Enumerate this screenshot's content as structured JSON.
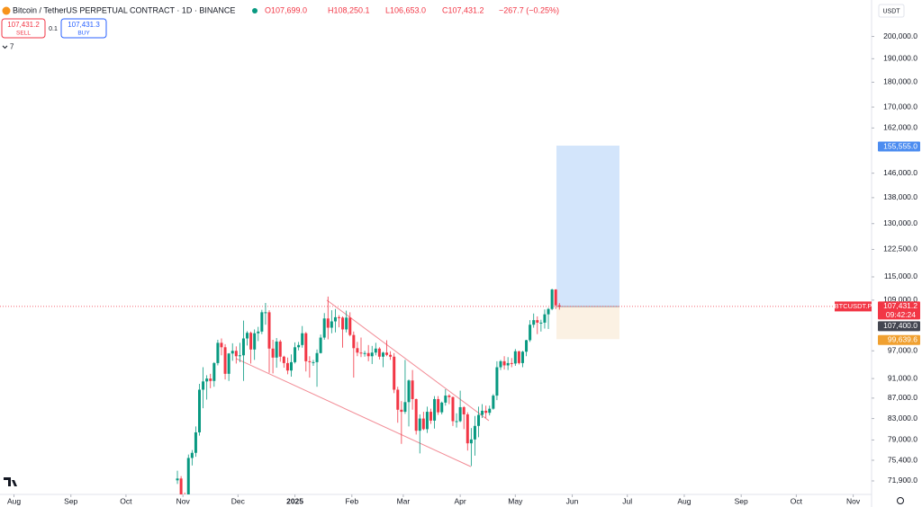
{
  "chart_data": {
    "type": "candlestick",
    "title": "Bitcoin / TetherUS PERPETUAL CONTRACT · 1D · BINANCE",
    "ohlc_legend": [
      "O107,699.0",
      "H108,250.1",
      "L106,653.0",
      "C107,431.2",
      "−267.7 (−0.25%)"
    ],
    "currency": "USDT",
    "trade": {
      "sell": {
        "value": 107431.2,
        "label": "107,431.2",
        "text": "SELL"
      },
      "quantity": 0.1,
      "buy": {
        "value": 107431.3,
        "label": "107,431.3",
        "text": "BUY"
      }
    },
    "indicators_count": 7,
    "up_color": "#089981",
    "down_color": "#f23645",
    "log_scale": true,
    "grid": false,
    "x": [
      0,
      2,
      4,
      6,
      8,
      10,
      12,
      14,
      16,
      18,
      20,
      22,
      24,
      26,
      28,
      30,
      32,
      34,
      36,
      38,
      40,
      42,
      44,
      46,
      48,
      50,
      52,
      54,
      56,
      58,
      60,
      62,
      64,
      66,
      68,
      70,
      72,
      74,
      76,
      78,
      80,
      82,
      84,
      86,
      88,
      90,
      92,
      94,
      96,
      98,
      100,
      102,
      104,
      106,
      108,
      110,
      112,
      114,
      116,
      118,
      120,
      122,
      124,
      126,
      128,
      130,
      132,
      134,
      136,
      138,
      140,
      142,
      144,
      146,
      148,
      150,
      152,
      154,
      156,
      158,
      160,
      162,
      164,
      166,
      168,
      170,
      172,
      174,
      176,
      178,
      180,
      182,
      184,
      186,
      188,
      190,
      192,
      194,
      196,
      198,
      200,
      202,
      204,
      206,
      208
    ],
    "open": [
      72000,
      72300,
      69500,
      69300,
      75800,
      76700,
      80400,
      88700,
      90400,
      91000,
      90500,
      94300,
      98800,
      97800,
      92000,
      96400,
      97000,
      95800,
      96000,
      99800,
      101100,
      97300,
      101000,
      101400,
      106000,
      106000,
      97500,
      95500,
      99100,
      95700,
      94300,
      92700,
      94500,
      97800,
      98300,
      101000,
      94700,
      94500,
      94500,
      96500,
      100000,
      104500,
      102300,
      103800,
      104800,
      104700,
      101900,
      104700,
      100600,
      97600,
      96600,
      96500,
      96500,
      95800,
      96600,
      97500,
      95700,
      96600,
      96100,
      95700,
      88700,
      84700,
      84300,
      86200,
      90600,
      86800,
      80700,
      83000,
      81000,
      84300,
      82600,
      86800,
      84200,
      86100,
      87500,
      87200,
      82500,
      82500,
      85200,
      83800,
      78400,
      79100,
      81600,
      83700,
      84500,
      84100,
      84900,
      87500,
      93400,
      94700,
      93800,
      94300,
      94200,
      96900,
      94300,
      96800,
      99400,
      103000,
      104100,
      103500,
      103500,
      105500,
      106800,
      111700,
      107699
    ],
    "high": [
      73600,
      72700,
      70000,
      76400,
      77200,
      81500,
      89900,
      93400,
      91700,
      92000,
      94500,
      99500,
      99800,
      98500,
      96500,
      98700,
      98000,
      98800,
      104000,
      101500,
      101400,
      101900,
      102500,
      106600,
      108300,
      106500,
      99500,
      99900,
      99500,
      95900,
      95500,
      96200,
      98900,
      99000,
      102700,
      101300,
      95800,
      95000,
      97300,
      100700,
      105800,
      109900,
      106500,
      106800,
      105300,
      105000,
      106400,
      106000,
      101400,
      99000,
      100000,
      97000,
      98300,
      98100,
      98800,
      97800,
      96800,
      99400,
      96900,
      96500,
      89300,
      86400,
      95000,
      90800,
      92800,
      86900,
      83800,
      84300,
      85300,
      84900,
      87400,
      87400,
      86300,
      88800,
      87800,
      87300,
      84000,
      88500,
      85400,
      84200,
      81200,
      83500,
      85300,
      85800,
      85500,
      85500,
      87800,
      94700,
      95000,
      95800,
      95600,
      95400,
      97400,
      97000,
      97000,
      99500,
      104100,
      105700,
      105000,
      104200,
      106700,
      107100,
      111900,
      111800,
      108250.1
    ],
    "low": [
      71400,
      69000,
      67500,
      66800,
      74500,
      76000,
      79800,
      85000,
      86700,
      89000,
      89300,
      93800,
      96000,
      90800,
      90500,
      94800,
      94200,
      94500,
      90500,
      98200,
      94200,
      95000,
      99200,
      100800,
      103000,
      92200,
      92100,
      93300,
      94600,
      93300,
      91900,
      91400,
      94200,
      97100,
      97700,
      92500,
      91200,
      93700,
      89300,
      96400,
      99500,
      99600,
      101000,
      101200,
      102400,
      97700,
      101200,
      100300,
      91200,
      95800,
      95600,
      95700,
      94700,
      94100,
      96000,
      95100,
      93400,
      95800,
      95000,
      88000,
      82200,
      78300,
      83900,
      81500,
      84700,
      80000,
      76600,
      80800,
      80300,
      82000,
      81100,
      83700,
      83800,
      85500,
      85800,
      81600,
      81300,
      82300,
      81000,
      77100,
      74400,
      76200,
      79500,
      83100,
      83100,
      83600,
      84700,
      86600,
      92800,
      92900,
      92800,
      93400,
      93700,
      94000,
      93400,
      95800,
      99000,
      102300,
      100800,
      101400,
      102100,
      102000,
      106500,
      106800,
      106653
    ],
    "close": [
      72300,
      69500,
      69300,
      75800,
      76700,
      80400,
      88700,
      90400,
      91000,
      90500,
      94300,
      98800,
      97800,
      92000,
      96400,
      97000,
      95800,
      96000,
      99800,
      101100,
      97300,
      101000,
      101400,
      106000,
      106000,
      97500,
      95500,
      99100,
      95700,
      94300,
      92700,
      94500,
      97800,
      98300,
      101000,
      94700,
      94500,
      94500,
      96500,
      100000,
      104500,
      102300,
      103800,
      104800,
      104700,
      101900,
      104700,
      100600,
      97600,
      96600,
      96500,
      96500,
      95800,
      96600,
      97500,
      95700,
      96600,
      96100,
      95700,
      88700,
      84700,
      84300,
      86200,
      90600,
      86800,
      80700,
      83000,
      81000,
      84300,
      82600,
      86800,
      84200,
      86100,
      87500,
      87200,
      82500,
      82500,
      85200,
      83800,
      78400,
      79100,
      81600,
      83700,
      84500,
      84100,
      84900,
      87500,
      93400,
      94700,
      93800,
      94300,
      94200,
      96900,
      94300,
      96800,
      99400,
      103000,
      104100,
      103500,
      103500,
      105500,
      106800,
      111700,
      107699,
      107431.2
    ],
    "xlim": [
      -96.6,
      378
    ],
    "xticks": [
      {
        "value": -89,
        "label": "Aug"
      },
      {
        "value": -58,
        "label": "Sep"
      },
      {
        "value": -28,
        "label": "Oct"
      },
      {
        "value": 3,
        "label": "Nov"
      },
      {
        "value": 33,
        "label": "Dec"
      },
      {
        "value": 64,
        "label": "2025"
      },
      {
        "value": 95,
        "label": "Feb"
      },
      {
        "value": 123,
        "label": "Mar"
      },
      {
        "value": 154,
        "label": "Apr"
      },
      {
        "value": 184,
        "label": "May"
      },
      {
        "value": 215,
        "label": "Jun"
      },
      {
        "value": 245,
        "label": "Jul"
      },
      {
        "value": 276,
        "label": "Aug"
      },
      {
        "value": 307,
        "label": "Sep"
      },
      {
        "value": 337,
        "label": "Oct"
      },
      {
        "value": 368,
        "label": "Nov"
      }
    ],
    "ylim": [
      69700,
      217500
    ],
    "yticks": [
      {
        "value": 200000,
        "label": "200,000.0"
      },
      {
        "value": 190000,
        "label": "190,000.0"
      },
      {
        "value": 180000,
        "label": "180,000.0"
      },
      {
        "value": 170000,
        "label": "170,000.0"
      },
      {
        "value": 162000,
        "label": "162,000.0"
      },
      {
        "value": 146000,
        "label": "146,000.0"
      },
      {
        "value": 138000,
        "label": "138,000.0"
      },
      {
        "value": 130000,
        "label": "130,000.0"
      },
      {
        "value": 122500,
        "label": "122,500.0"
      },
      {
        "value": 115000,
        "label": "115,000.0"
      },
      {
        "value": 109000,
        "label": "109,000.0"
      },
      {
        "value": 97000,
        "label": "97,000.0"
      },
      {
        "value": 91000,
        "label": "91,000.0"
      },
      {
        "value": 87000,
        "label": "87,000.0"
      },
      {
        "value": 83000,
        "label": "83,000.0"
      },
      {
        "value": 79000,
        "label": "79,000.0"
      },
      {
        "value": 75400,
        "label": "75,400.0"
      },
      {
        "value": 71900,
        "label": "71,900.0"
      }
    ],
    "last_price": {
      "value": 107431.2,
      "label": "107,431.2",
      "symbol": "BTCUSDT.P",
      "countdown": "09:42:24",
      "color": "#f23645"
    },
    "position": {
      "x_start": 206.4,
      "x_end": 240.7,
      "entry": {
        "value": 107400,
        "label": "107,400.0",
        "color": "#434651"
      },
      "target": {
        "value": 155555,
        "label": "155,555.0",
        "color": "#4c8cf0",
        "zone_color": "#d3e5fb"
      },
      "stop": {
        "value": 99639.6,
        "label": "99,639.6",
        "color": "#f0a030",
        "zone_color": "#fbf1e3"
      }
    },
    "trendlines": [
      {
        "x": [
          31.9,
          159.8
        ],
        "y": [
          95300,
          74300
        ],
        "color": "#f28b95"
      },
      {
        "x": [
          81.4,
          169.6
        ],
        "y": [
          109000,
          82600
        ],
        "color": "#f28b95"
      }
    ]
  }
}
